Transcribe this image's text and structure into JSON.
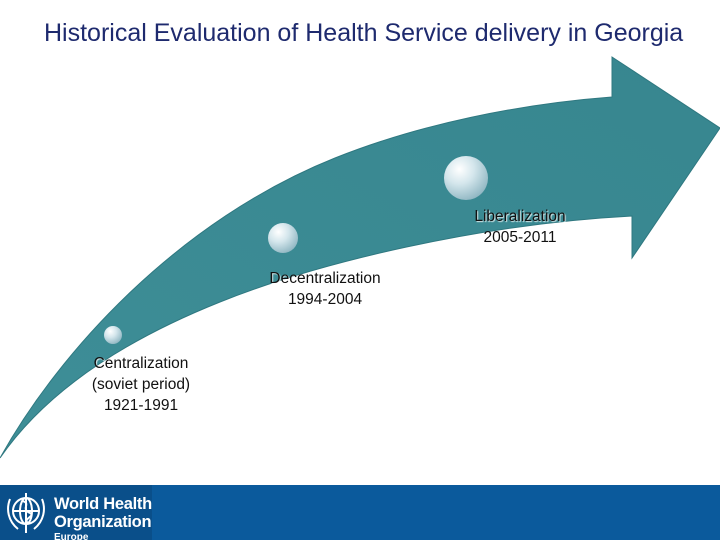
{
  "title": "Historical Evaluation of Health Service delivery in Georgia",
  "colors": {
    "title": "#1e2a6e",
    "arrow": "#3a8a93",
    "arrow_edge": "#2f7880",
    "footer": "#0b5a9c",
    "marker": "#cfe3ea"
  },
  "stages": [
    {
      "name": "Centralization (soviet period)",
      "name_lines": [
        "Centralization",
        "(soviet period)"
      ],
      "period": "1921-1991"
    },
    {
      "name": "Decentralization",
      "name_lines": [
        "Decentralization"
      ],
      "period": "1994-2004"
    },
    {
      "name": "Liberalization",
      "name_lines": [
        "Liberalization"
      ],
      "period": "2005-2011"
    }
  ],
  "footer": {
    "organization_lines": [
      "World Health",
      "Organization"
    ],
    "region": "Europe",
    "logo_icon": "who-emblem-icon"
  }
}
